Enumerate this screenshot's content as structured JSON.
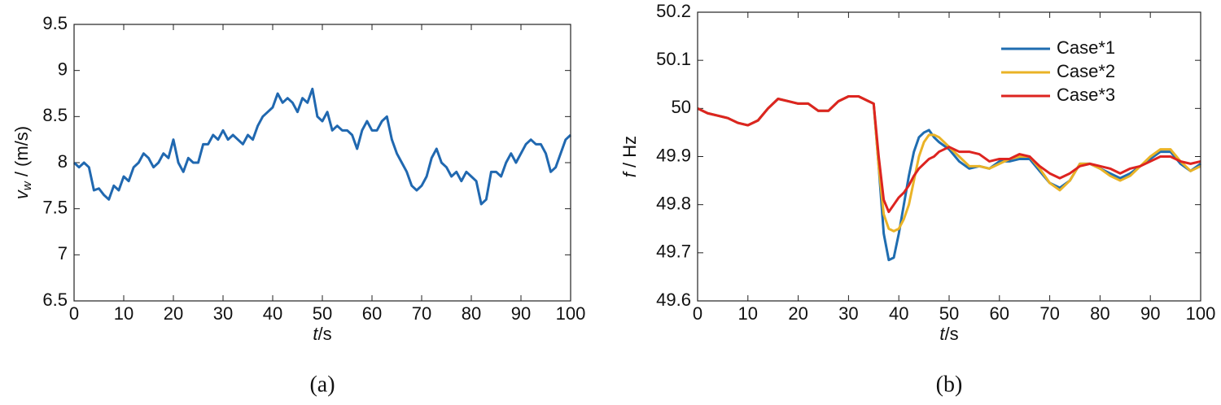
{
  "chart_data": [
    {
      "type": "line",
      "caption": "(a)",
      "xlabel": {
        "symbol": "t",
        "unit": "/s"
      },
      "ylabel": {
        "symbol": "v",
        "subscript": "w",
        "unit": " / (m/s)"
      },
      "color": "#2068b0",
      "x": [
        0,
        1,
        2,
        3,
        4,
        5,
        6,
        7,
        8,
        9,
        10,
        11,
        12,
        13,
        14,
        15,
        16,
        17,
        18,
        19,
        20,
        21,
        22,
        23,
        24,
        25,
        26,
        27,
        28,
        29,
        30,
        31,
        32,
        33,
        34,
        35,
        36,
        37,
        38,
        39,
        40,
        41,
        42,
        43,
        44,
        45,
        46,
        47,
        48,
        49,
        50,
        51,
        52,
        53,
        54,
        55,
        56,
        57,
        58,
        59,
        60,
        61,
        62,
        63,
        64,
        65,
        66,
        67,
        68,
        69,
        70,
        71,
        72,
        73,
        74,
        75,
        76,
        77,
        78,
        79,
        80,
        81,
        82,
        83,
        84,
        85,
        86,
        87,
        88,
        89,
        90,
        91,
        92,
        93,
        94,
        95,
        96,
        97,
        98,
        99,
        100
      ],
      "values": [
        8.0,
        7.95,
        8.0,
        7.95,
        7.7,
        7.72,
        7.65,
        7.6,
        7.75,
        7.7,
        7.85,
        7.8,
        7.95,
        8.0,
        8.1,
        8.05,
        7.95,
        8.0,
        8.1,
        8.05,
        8.25,
        8.0,
        7.9,
        8.05,
        8.0,
        8.0,
        8.2,
        8.2,
        8.3,
        8.25,
        8.35,
        8.25,
        8.3,
        8.25,
        8.2,
        8.3,
        8.25,
        8.4,
        8.5,
        8.55,
        8.6,
        8.75,
        8.65,
        8.7,
        8.65,
        8.55,
        8.7,
        8.65,
        8.8,
        8.5,
        8.45,
        8.55,
        8.35,
        8.4,
        8.35,
        8.35,
        8.3,
        8.15,
        8.35,
        8.45,
        8.35,
        8.35,
        8.45,
        8.5,
        8.25,
        8.1,
        8.0,
        7.9,
        7.75,
        7.7,
        7.75,
        7.85,
        8.05,
        8.15,
        8.0,
        7.95,
        7.85,
        7.9,
        7.8,
        7.9,
        7.85,
        7.8,
        7.55,
        7.6,
        7.9,
        7.9,
        7.85,
        8.0,
        8.1,
        8.0,
        8.1,
        8.2,
        8.25,
        8.2,
        8.2,
        8.1,
        7.9,
        7.95,
        8.1,
        8.25,
        8.3
      ],
      "xlim": [
        0,
        100
      ],
      "xticks": [
        0,
        10,
        20,
        30,
        40,
        50,
        60,
        70,
        80,
        90,
        100
      ],
      "ylim": [
        6.5,
        9.5
      ],
      "yticks": [
        6.5,
        7,
        7.5,
        8,
        8.5,
        9,
        9.5
      ]
    },
    {
      "type": "line",
      "caption": "(b)",
      "xlabel": {
        "symbol": "t",
        "unit": "/s"
      },
      "ylabel": {
        "symbol": "f",
        "unit": " / Hz"
      },
      "legend": "upper right",
      "x": [
        0,
        2,
        4,
        6,
        8,
        10,
        12,
        14,
        16,
        18,
        20,
        22,
        24,
        26,
        28,
        30,
        32,
        34,
        35,
        36,
        37,
        38,
        39,
        40,
        41,
        42,
        43,
        44,
        45,
        46,
        47,
        48,
        50,
        52,
        54,
        56,
        58,
        60,
        62,
        64,
        66,
        68,
        70,
        72,
        74,
        76,
        78,
        80,
        82,
        84,
        86,
        88,
        90,
        92,
        94,
        96,
        98,
        100
      ],
      "series": [
        {
          "name": "Case*1",
          "color": "#1f6db0",
          "values": [
            50.0,
            49.99,
            49.985,
            49.98,
            49.97,
            49.965,
            49.975,
            50.0,
            50.02,
            50.015,
            50.01,
            50.01,
            49.995,
            49.995,
            50.015,
            50.025,
            50.025,
            50.015,
            50.01,
            49.88,
            49.74,
            49.685,
            49.69,
            49.74,
            49.8,
            49.86,
            49.91,
            49.94,
            49.95,
            49.955,
            49.94,
            49.93,
            49.915,
            49.89,
            49.875,
            49.88,
            49.875,
            49.89,
            49.89,
            49.895,
            49.895,
            49.87,
            49.845,
            49.835,
            49.85,
            49.885,
            49.885,
            49.875,
            49.865,
            49.855,
            49.865,
            49.88,
            49.895,
            49.91,
            49.91,
            49.885,
            49.87,
            49.885
          ]
        },
        {
          "name": "Case*2",
          "color": "#eab326",
          "values": [
            50.0,
            49.99,
            49.985,
            49.98,
            49.97,
            49.965,
            49.975,
            50.0,
            50.02,
            50.015,
            50.01,
            50.01,
            49.995,
            49.995,
            50.015,
            50.025,
            50.025,
            50.015,
            50.01,
            49.88,
            49.78,
            49.75,
            49.745,
            49.75,
            49.77,
            49.8,
            49.85,
            49.9,
            49.93,
            49.945,
            49.945,
            49.94,
            49.92,
            49.9,
            49.88,
            49.88,
            49.875,
            49.885,
            49.895,
            49.9,
            49.9,
            49.875,
            49.845,
            49.83,
            49.85,
            49.885,
            49.885,
            49.875,
            49.86,
            49.85,
            49.86,
            49.88,
            49.9,
            49.915,
            49.915,
            49.89,
            49.87,
            49.88
          ]
        },
        {
          "name": "Case*3",
          "color": "#dd2420",
          "values": [
            50.0,
            49.99,
            49.985,
            49.98,
            49.97,
            49.965,
            49.975,
            50.0,
            50.02,
            50.015,
            50.01,
            50.01,
            49.995,
            49.995,
            50.015,
            50.025,
            50.025,
            50.015,
            50.01,
            49.9,
            49.81,
            49.785,
            49.8,
            49.815,
            49.825,
            49.84,
            49.86,
            49.875,
            49.885,
            49.895,
            49.9,
            49.91,
            49.92,
            49.91,
            49.91,
            49.905,
            49.89,
            49.895,
            49.895,
            49.905,
            49.9,
            49.88,
            49.865,
            49.855,
            49.865,
            49.88,
            49.885,
            49.88,
            49.875,
            49.865,
            49.875,
            49.88,
            49.89,
            49.9,
            49.9,
            49.89,
            49.885,
            49.89
          ]
        }
      ],
      "xlim": [
        0,
        100
      ],
      "xticks": [
        0,
        10,
        20,
        30,
        40,
        50,
        60,
        70,
        80,
        90,
        100
      ],
      "ylim": [
        49.6,
        50.2
      ],
      "yticks": [
        49.6,
        49.7,
        49.8,
        49.9,
        50,
        50.1,
        50.2
      ]
    }
  ]
}
